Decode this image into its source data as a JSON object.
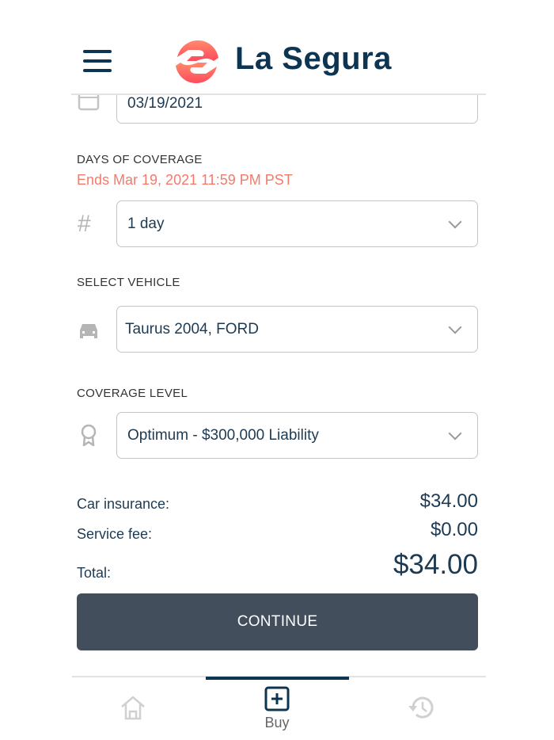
{
  "header": {
    "brand": "La Segura",
    "menu_icon": "hamburger-icon",
    "logo_icon": "hands-logo"
  },
  "form": {
    "date": {
      "icon": "calendar-icon",
      "value": "03/19/2021"
    },
    "days": {
      "label": "DAYS OF COVERAGE",
      "note": "Ends Mar 19, 2021 11:59 PM PST",
      "icon": "hash-icon",
      "value": "1 day"
    },
    "vehicle": {
      "label": "SELECT VEHICLE",
      "icon": "car-icon",
      "value": "Taurus 2004, FORD"
    },
    "coverage": {
      "label": "COVERAGE LEVEL",
      "icon": "award-icon",
      "value": "Optimum - $300,000 Liability"
    }
  },
  "summary": {
    "car_label": "Car insurance:",
    "car_value": "$34.00",
    "fee_label": "Service fee:",
    "fee_value": "$0.00",
    "total_label": "Total:",
    "total_value": "$34.00"
  },
  "continue_label": "CONTINUE",
  "nav": {
    "items": [
      {
        "icon": "home-icon"
      },
      {
        "icon": "plus-square-icon",
        "label": "Buy",
        "active": true
      },
      {
        "icon": "history-icon"
      }
    ]
  },
  "colors": {
    "brand": "#0d3451",
    "accent": "#f47a6a",
    "button": "#424e5c"
  }
}
